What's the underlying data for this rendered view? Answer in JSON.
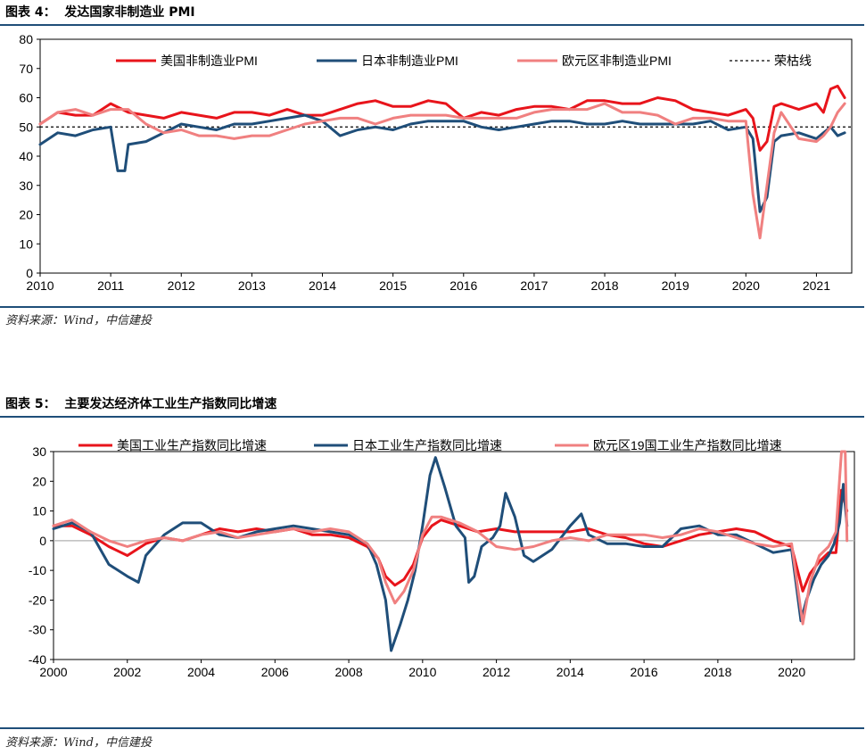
{
  "panel1": {
    "title_text": "图表 4：  发达国家非制造业 PMI",
    "source": "资料来源：Wind，中信建投"
  },
  "panel2": {
    "title_text": "图表 5：  主要发达经济体工业生产指数同比增速",
    "source": "资料来源：Wind，中信建投"
  },
  "chart_data": [
    {
      "type": "line",
      "title": "",
      "xlabel": "",
      "ylabel": "",
      "xlim": [
        2010.0,
        2021.5
      ],
      "ylim": [
        0,
        80
      ],
      "y_ticks": [
        0,
        10,
        20,
        30,
        40,
        50,
        60,
        70,
        80
      ],
      "x_tick_labels": [
        "2010",
        "2011",
        "2012",
        "2013",
        "2014",
        "2015",
        "2016",
        "2017",
        "2018",
        "2019",
        "2020",
        "2021"
      ],
      "grid": false,
      "legend_position": "top",
      "reference_line": {
        "name": "荣枯线",
        "y": 50,
        "style": "dashed",
        "color": "#000000"
      },
      "series": [
        {
          "name": "美国非制造业PMI",
          "color": "#e8141b",
          "x": [
            2010.0,
            2010.25,
            2010.5,
            2010.75,
            2011.0,
            2011.25,
            2011.5,
            2011.75,
            2012.0,
            2012.25,
            2012.5,
            2012.75,
            2013.0,
            2013.25,
            2013.5,
            2013.75,
            2014.0,
            2014.25,
            2014.5,
            2014.75,
            2015.0,
            2015.25,
            2015.5,
            2015.75,
            2016.0,
            2016.25,
            2016.5,
            2016.75,
            2017.0,
            2017.25,
            2017.5,
            2017.75,
            2018.0,
            2018.25,
            2018.5,
            2018.75,
            2019.0,
            2019.25,
            2019.5,
            2019.75,
            2020.0,
            2020.1,
            2020.2,
            2020.3,
            2020.4,
            2020.5,
            2020.75,
            2021.0,
            2021.1,
            2021.2,
            2021.3,
            2021.4
          ],
          "y": [
            51,
            55,
            54,
            54,
            58,
            55,
            54,
            53,
            55,
            54,
            53,
            55,
            55,
            54,
            56,
            54,
            54,
            56,
            58,
            59,
            57,
            57,
            59,
            58,
            53,
            55,
            54,
            56,
            57,
            57,
            56,
            59,
            59,
            58,
            58,
            60,
            59,
            56,
            55,
            54,
            56,
            53,
            42,
            45,
            57,
            58,
            56,
            58,
            55,
            63,
            64,
            60
          ]
        },
        {
          "name": "日本非制造业PMI",
          "color": "#1f4e79",
          "x": [
            2010.0,
            2010.25,
            2010.5,
            2010.75,
            2011.0,
            2011.1,
            2011.2,
            2011.25,
            2011.5,
            2011.75,
            2012.0,
            2012.25,
            2012.5,
            2012.75,
            2013.0,
            2013.25,
            2013.5,
            2013.75,
            2014.0,
            2014.25,
            2014.5,
            2014.75,
            2015.0,
            2015.25,
            2015.5,
            2015.75,
            2016.0,
            2016.25,
            2016.5,
            2016.75,
            2017.0,
            2017.25,
            2017.5,
            2017.75,
            2018.0,
            2018.25,
            2018.5,
            2018.75,
            2019.0,
            2019.25,
            2019.5,
            2019.75,
            2020.0,
            2020.1,
            2020.2,
            2020.3,
            2020.4,
            2020.5,
            2020.75,
            2021.0,
            2021.1,
            2021.2,
            2021.3,
            2021.4
          ],
          "y": [
            44,
            48,
            47,
            49,
            50,
            35,
            35,
            44,
            45,
            48,
            51,
            50,
            49,
            51,
            51,
            52,
            53,
            54,
            52,
            47,
            49,
            50,
            49,
            51,
            52,
            52,
            52,
            50,
            49,
            50,
            51,
            52,
            52,
            51,
            51,
            52,
            51,
            51,
            51,
            51,
            52,
            49,
            50,
            46,
            21,
            26,
            45,
            47,
            48,
            46,
            48,
            50,
            47,
            48
          ]
        },
        {
          "name": "欧元区非制造业PMI",
          "color": "#f08080",
          "x": [
            2010.0,
            2010.25,
            2010.5,
            2010.75,
            2011.0,
            2011.25,
            2011.5,
            2011.75,
            2012.0,
            2012.25,
            2012.5,
            2012.75,
            2013.0,
            2013.25,
            2013.5,
            2013.75,
            2014.0,
            2014.25,
            2014.5,
            2014.75,
            2015.0,
            2015.25,
            2015.5,
            2015.75,
            2016.0,
            2016.25,
            2016.5,
            2016.75,
            2017.0,
            2017.25,
            2017.5,
            2017.75,
            2018.0,
            2018.25,
            2018.5,
            2018.75,
            2019.0,
            2019.25,
            2019.5,
            2019.75,
            2020.0,
            2020.1,
            2020.2,
            2020.3,
            2020.4,
            2020.5,
            2020.75,
            2021.0,
            2021.1,
            2021.2,
            2021.3,
            2021.4
          ],
          "y": [
            51,
            55,
            56,
            54,
            56,
            56,
            51,
            48,
            49,
            47,
            47,
            46,
            47,
            47,
            49,
            51,
            52,
            53,
            53,
            51,
            53,
            54,
            54,
            54,
            53,
            53,
            53,
            53,
            55,
            56,
            56,
            56,
            58,
            55,
            55,
            54,
            51,
            53,
            53,
            52,
            52,
            27,
            12,
            30,
            48,
            55,
            46,
            45,
            47,
            50,
            55,
            58
          ]
        }
      ]
    },
    {
      "type": "line",
      "title": "",
      "xlabel": "",
      "ylabel": "",
      "xlim": [
        2000.0,
        2021.7
      ],
      "ylim": [
        -40,
        30
      ],
      "y_ticks": [
        -40,
        -30,
        -20,
        -10,
        0,
        10,
        20,
        30
      ],
      "x_tick_labels": [
        "2000",
        "2002",
        "2004",
        "2006",
        "2008",
        "2010",
        "2012",
        "2014",
        "2016",
        "2018",
        "2020"
      ],
      "grid": false,
      "legend_position": "top",
      "reference_line": {
        "y": 0,
        "style": "solid",
        "color": "#b0b0b0"
      },
      "series": [
        {
          "name": "美国工业生产指数同比增速",
          "color": "#e8141b",
          "x": [
            2000.0,
            2000.5,
            2001.0,
            2001.5,
            2002.0,
            2002.5,
            2003.0,
            2003.5,
            2004.0,
            2004.5,
            2005.0,
            2005.5,
            2006.0,
            2006.5,
            2007.0,
            2007.5,
            2008.0,
            2008.5,
            2008.8,
            2009.0,
            2009.25,
            2009.5,
            2009.75,
            2010.0,
            2010.25,
            2010.5,
            2010.75,
            2011.0,
            2011.5,
            2012.0,
            2012.5,
            2013.0,
            2014.0,
            2014.5,
            2015.0,
            2015.5,
            2016.0,
            2016.5,
            2017.0,
            2017.5,
            2018.0,
            2018.5,
            2019.0,
            2019.5,
            2020.0,
            2020.3,
            2020.5,
            2020.75,
            2021.0,
            2021.2,
            2021.35,
            2021.5
          ],
          "y": [
            5,
            5,
            2,
            -2,
            -5,
            -1,
            1,
            0,
            2,
            4,
            3,
            4,
            3,
            4,
            2,
            2,
            1,
            -2,
            -6,
            -12,
            -15,
            -13,
            -8,
            1,
            5,
            7,
            6,
            5,
            3,
            4,
            3,
            3,
            3,
            4,
            2,
            1,
            -1,
            -2,
            0,
            2,
            3,
            4,
            3,
            0,
            -2,
            -17,
            -11,
            -7,
            -4,
            -4,
            17,
            10
          ]
        },
        {
          "name": "日本工业生产指数同比增速",
          "color": "#1f4e79",
          "x": [
            2000.0,
            2000.5,
            2001.0,
            2001.5,
            2002.0,
            2002.3,
            2002.5,
            2003.0,
            2003.5,
            2004.0,
            2004.5,
            2005.0,
            2005.5,
            2006.0,
            2006.5,
            2007.0,
            2007.5,
            2008.0,
            2008.5,
            2008.75,
            2009.0,
            2009.15,
            2009.4,
            2009.6,
            2009.8,
            2010.0,
            2010.2,
            2010.35,
            2010.6,
            2010.9,
            2011.15,
            2011.25,
            2011.4,
            2011.6,
            2011.9,
            2012.1,
            2012.25,
            2012.5,
            2012.75,
            2013.0,
            2013.5,
            2014.0,
            2014.3,
            2014.5,
            2015.0,
            2015.5,
            2016.0,
            2016.5,
            2017.0,
            2017.5,
            2018.0,
            2018.5,
            2019.0,
            2019.5,
            2020.0,
            2020.25,
            2020.4,
            2020.6,
            2020.8,
            2021.0,
            2021.15,
            2021.3,
            2021.4,
            2021.5
          ],
          "y": [
            4,
            6,
            3,
            -8,
            -12,
            -14,
            -5,
            2,
            6,
            6,
            2,
            1,
            3,
            4,
            5,
            4,
            3,
            2,
            -1,
            -8,
            -20,
            -37,
            -28,
            -20,
            -10,
            5,
            22,
            28,
            18,
            5,
            1,
            -14,
            -12,
            -2,
            1,
            5,
            16,
            8,
            -5,
            -7,
            -3,
            5,
            9,
            2,
            -1,
            -1,
            -2,
            -2,
            4,
            5,
            2,
            2,
            -1,
            -4,
            -3,
            -27,
            -20,
            -13,
            -8,
            -5,
            -1,
            6,
            19,
            5
          ]
        },
        {
          "name": "欧元区19国工业生产指数同比增速",
          "color": "#f08080",
          "x": [
            2000.0,
            2000.5,
            2001.0,
            2001.5,
            2002.0,
            2002.5,
            2003.0,
            2003.5,
            2004.0,
            2004.5,
            2005.0,
            2005.5,
            2006.0,
            2006.5,
            2007.0,
            2007.5,
            2008.0,
            2008.5,
            2008.8,
            2009.0,
            2009.25,
            2009.5,
            2009.75,
            2010.0,
            2010.25,
            2010.5,
            2010.75,
            2011.0,
            2011.5,
            2012.0,
            2012.5,
            2013.0,
            2013.5,
            2014.0,
            2014.5,
            2015.0,
            2015.5,
            2016.0,
            2016.5,
            2017.0,
            2017.5,
            2018.0,
            2018.5,
            2019.0,
            2019.5,
            2020.0,
            2020.3,
            2020.5,
            2020.75,
            2021.0,
            2021.2,
            2021.35,
            2021.45,
            2021.5
          ],
          "y": [
            5,
            7,
            3,
            0,
            -2,
            0,
            1,
            0,
            2,
            3,
            1,
            2,
            3,
            4,
            3,
            4,
            3,
            -1,
            -6,
            -14,
            -21,
            -17,
            -10,
            2,
            8,
            8,
            7,
            6,
            3,
            -2,
            -3,
            -2,
            0,
            1,
            0,
            2,
            2,
            2,
            1,
            2,
            4,
            3,
            1,
            -1,
            -2,
            -1,
            -28,
            -14,
            -5,
            -2,
            3,
            30,
            30,
            0
          ]
        }
      ]
    }
  ]
}
